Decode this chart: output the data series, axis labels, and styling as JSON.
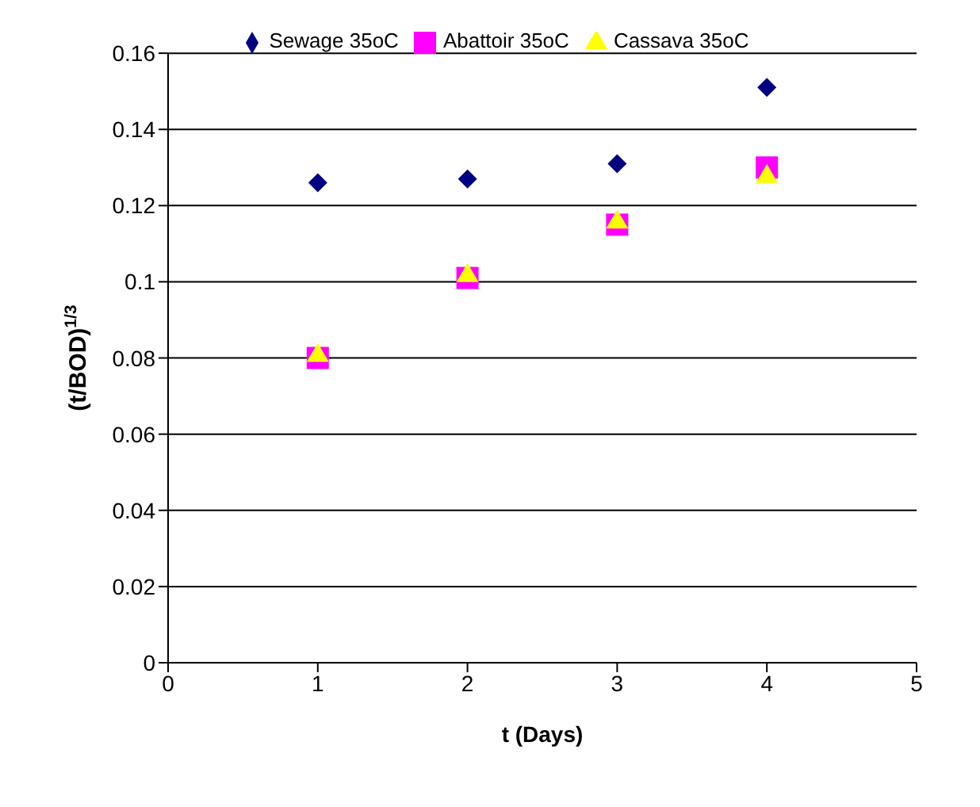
{
  "chart_data": {
    "type": "scatter",
    "xlabel": "t (Days)",
    "ylabel": "(t/BOD)$^{1/3}$",
    "x": [
      1,
      2,
      3,
      4
    ],
    "series": [
      {
        "name": "Sewage 35oC",
        "color": "#000080",
        "marker": "diamond",
        "values": [
          0.126,
          0.127,
          0.131,
          0.151
        ]
      },
      {
        "name": "Abattoir 35oC",
        "color": "#ff00ff",
        "marker": "square",
        "values": [
          0.08,
          0.101,
          0.115,
          0.13
        ]
      },
      {
        "name": "Cassava 35oC",
        "color": "#ffff00",
        "marker": "triangle",
        "values": [
          0.081,
          0.102,
          0.116,
          0.128
        ]
      }
    ],
    "xlim": [
      0,
      5
    ],
    "xticks": [
      0,
      1,
      2,
      3,
      4,
      5
    ],
    "ylim": [
      0,
      0.16
    ],
    "yticks": [
      0,
      0.02,
      0.04,
      0.06,
      0.08,
      0.1,
      0.12,
      0.14,
      0.16
    ],
    "grid": "y",
    "legend": "top"
  }
}
